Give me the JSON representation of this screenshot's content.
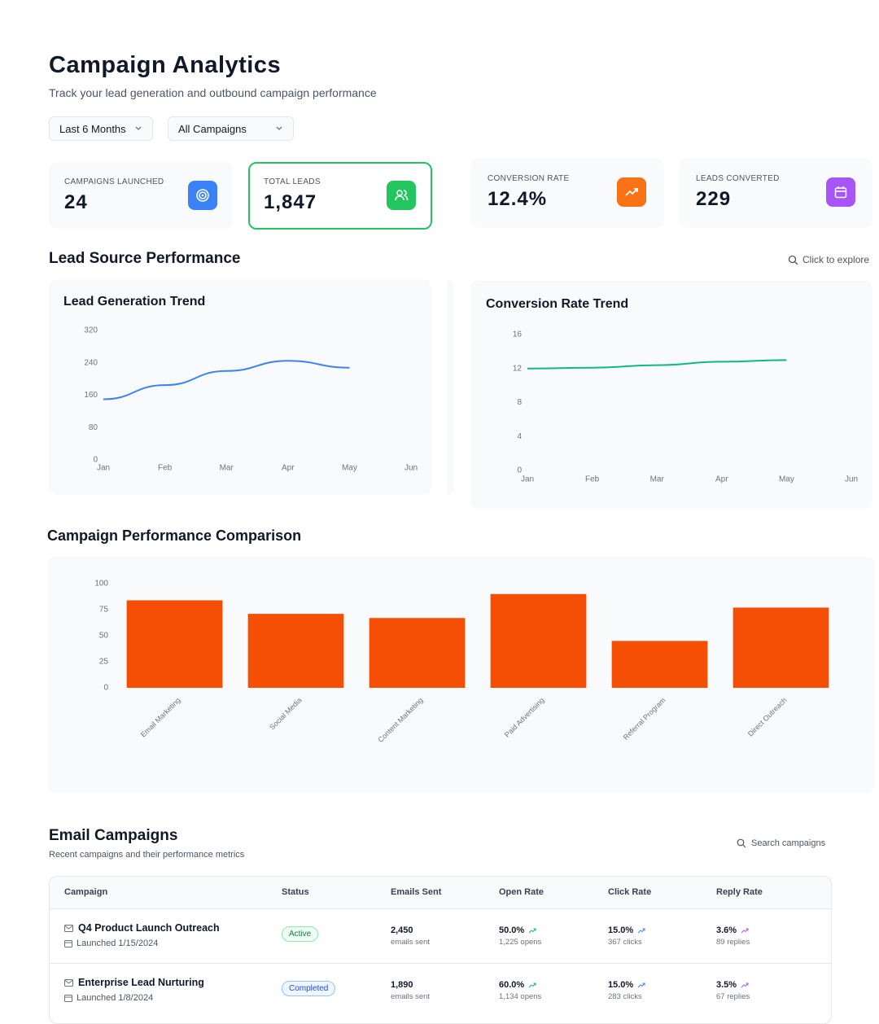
{
  "header": {
    "title": "Campaign Analytics",
    "subtitle": "Track your lead generation and outbound campaign performance"
  },
  "filters": [
    "Last 6 Months",
    "All Campaigns"
  ],
  "stats": [
    {
      "label": "CAMPAIGNS LAUNCHED",
      "value": "24"
    },
    {
      "label": "TOTAL LEADS",
      "value": "1,847"
    },
    {
      "label": "CONVERSION RATE",
      "value": "12.4%"
    },
    {
      "label": "LEADS CONVERTED",
      "value": "229"
    }
  ],
  "sections": {
    "lead_source": "Lead Source Performance",
    "explore": "Click to explore",
    "comparison": "Campaign Performance Comparison"
  },
  "chart_data": [
    {
      "type": "line",
      "title": "Lead Generation Trend",
      "categories": [
        "Jan",
        "Feb",
        "Mar",
        "Apr",
        "May",
        "Jun"
      ],
      "values": [
        150,
        185,
        220,
        245,
        228,
        null
      ],
      "ylim": [
        0,
        320
      ],
      "yticks": [
        0,
        80,
        160,
        240,
        320
      ],
      "color": "#3b82f6",
      "grid": false
    },
    {
      "type": "line",
      "title": "Conversion Rate Trend",
      "categories": [
        "Jan",
        "Feb",
        "Mar",
        "Apr",
        "May",
        "Jun"
      ],
      "values": [
        12,
        12.1,
        12.4,
        12.8,
        13,
        null
      ],
      "ylim": [
        0,
        16
      ],
      "yticks": [
        0,
        4,
        8,
        12,
        16
      ],
      "color": "#10b981",
      "grid": false
    },
    {
      "type": "bar",
      "categories": [
        "Email Marketing",
        "Social Media",
        "Content Marketing",
        "Paid Advertising",
        "Referral Program",
        "Direct Outreach"
      ],
      "values": [
        84,
        71,
        67,
        90,
        45,
        77
      ],
      "ylim": [
        0,
        100
      ],
      "yticks": [
        0,
        25,
        50,
        75,
        100
      ],
      "color": "#f54e05",
      "grid": false
    }
  ],
  "email": {
    "title": "Email Campaigns",
    "subtitle": "Recent campaigns and their performance metrics",
    "search": "Search campaigns",
    "columns": [
      "Campaign",
      "Status",
      "Emails Sent",
      "Open Rate",
      "Click Rate",
      "Reply Rate"
    ],
    "rows": [
      {
        "name": "Q4 Product Launch Outreach",
        "launched": "Launched 1/15/2024",
        "status": "Active",
        "sent": "2,450",
        "sent_note": "emails sent",
        "open": "50.0%",
        "open_note": "1,225 opens",
        "click": "15.0%",
        "click_note": "367 clicks",
        "reply": "3.6%",
        "reply_note": "89 replies"
      },
      {
        "name": "Enterprise Lead Nurturing",
        "launched": "Launched 1/8/2024",
        "status": "Completed",
        "sent": "1,890",
        "sent_note": "emails sent",
        "open": "60.0%",
        "open_note": "1,134 opens",
        "click": "15.0%",
        "click_note": "283 clicks",
        "reply": "3.5%",
        "reply_note": "67 replies"
      }
    ]
  }
}
